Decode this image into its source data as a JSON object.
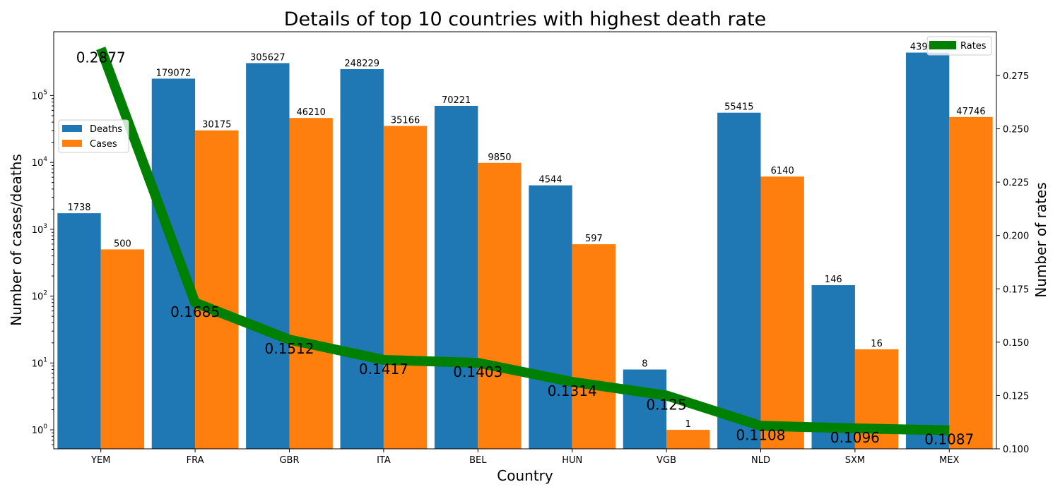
{
  "chart_data": {
    "type": "bar",
    "title": "Details of top 10 countries with highest death rate",
    "xlabel": "Country",
    "ylabel": "Number of cases/deaths",
    "y2label": "Number of rates",
    "yscale": "log",
    "ylim": [
      0.52,
      900000
    ],
    "y2lim": [
      0.1,
      0.2955
    ],
    "y_major_ticks": [
      1,
      10,
      100,
      1000,
      10000,
      100000
    ],
    "y_tick_labels": [
      {
        "base": "10",
        "exp": "0"
      },
      {
        "base": "10",
        "exp": "1"
      },
      {
        "base": "10",
        "exp": "2"
      },
      {
        "base": "10",
        "exp": "3"
      },
      {
        "base": "10",
        "exp": "4"
      },
      {
        "base": "10",
        "exp": "5"
      }
    ],
    "y2_ticks": [
      "0.100",
      "0.125",
      "0.150",
      "0.175",
      "0.200",
      "0.225",
      "0.250",
      "0.275"
    ],
    "categories": [
      "YEM",
      "FRA",
      "GBR",
      "ITA",
      "BEL",
      "HUN",
      "VGB",
      "NLD",
      "SXM",
      "MEX"
    ],
    "series": [
      {
        "name": "Deaths",
        "color": "#1f77b4",
        "values": [
          1738,
          179072,
          305627,
          248229,
          70221,
          4544,
          8,
          55415,
          146,
          439046
        ]
      },
      {
        "name": "Cases",
        "color": "#ff7f0e",
        "values": [
          500,
          30175,
          46210,
          35166,
          9850,
          597,
          1,
          6140,
          16,
          47746
        ]
      }
    ],
    "line_series": {
      "name": "Rates",
      "color": "#008000",
      "values": [
        0.2877,
        0.1685,
        0.1512,
        0.1417,
        0.1403,
        0.1314,
        0.125,
        0.1108,
        0.1096,
        0.1087
      ],
      "labels": [
        "0.2877",
        "0.1685",
        "0.1512",
        "0.1417",
        "0.1403",
        "0.1314",
        "0.125",
        "0.1108",
        "0.1096",
        "0.1087"
      ]
    },
    "legend_left": {
      "position": "upper-left",
      "entries": [
        "Deaths",
        "Cases"
      ]
    },
    "legend_right": {
      "position": "top-right",
      "entries": [
        "Rates"
      ]
    }
  }
}
